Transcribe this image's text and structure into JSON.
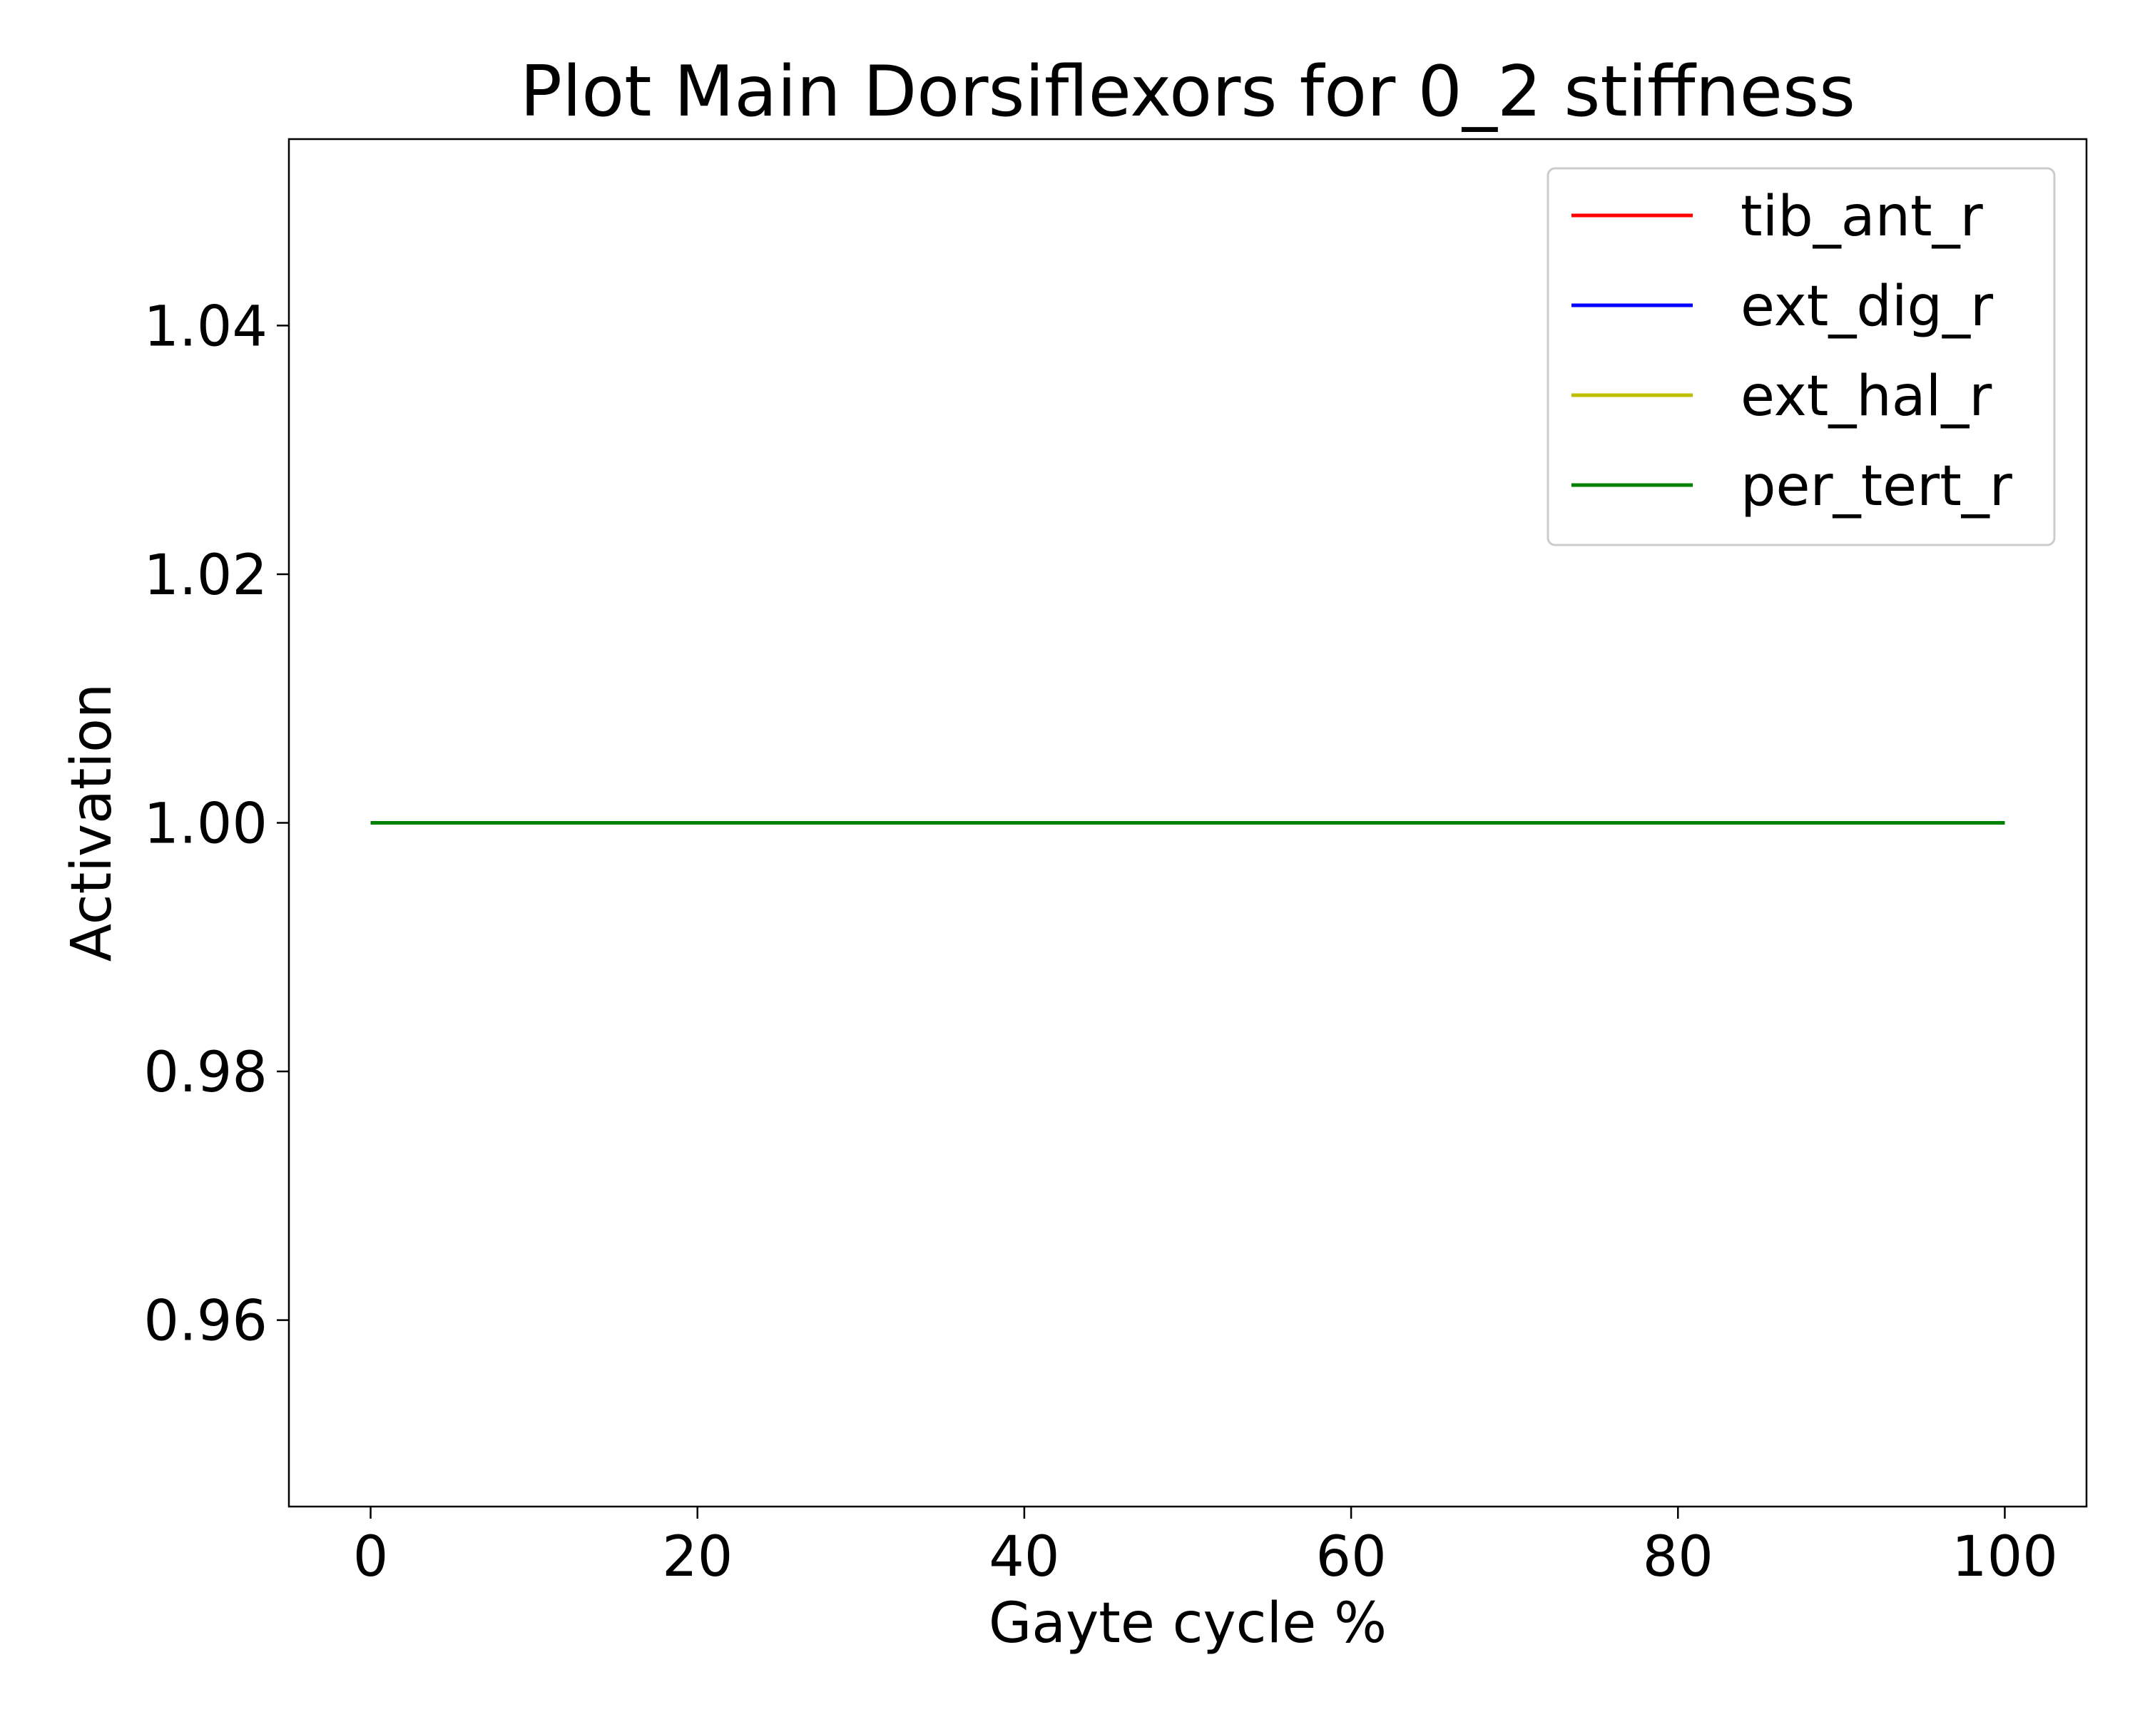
{
  "chart_data": {
    "type": "line",
    "title": "Plot Main Dorsiflexors for 0_2 stiffness",
    "xlabel": "Gayte cycle %",
    "ylabel": "Activation",
    "xlim": [
      -5,
      105
    ],
    "ylim": [
      0.945,
      1.055
    ],
    "xticks": [
      0,
      20,
      40,
      60,
      80,
      100
    ],
    "xtick_labels": [
      "0",
      "20",
      "40",
      "60",
      "80",
      "100"
    ],
    "yticks": [
      0.96,
      0.98,
      1.0,
      1.02,
      1.04
    ],
    "ytick_labels": [
      "0.96",
      "0.98",
      "1.00",
      "1.02",
      "1.04"
    ],
    "grid": false,
    "legend_position": "top-right",
    "x": [
      0,
      100
    ],
    "series": [
      {
        "name": "tib_ant_r",
        "color": "#ff0000",
        "values": [
          1.0,
          1.0
        ]
      },
      {
        "name": "ext_dig_r",
        "color": "#0000ff",
        "values": [
          1.0,
          1.0
        ]
      },
      {
        "name": "ext_hal_r",
        "color": "#bfbf00",
        "values": [
          1.0,
          1.0
        ]
      },
      {
        "name": "per_tert_r",
        "color": "#008000",
        "values": [
          1.0,
          1.0
        ]
      }
    ]
  }
}
